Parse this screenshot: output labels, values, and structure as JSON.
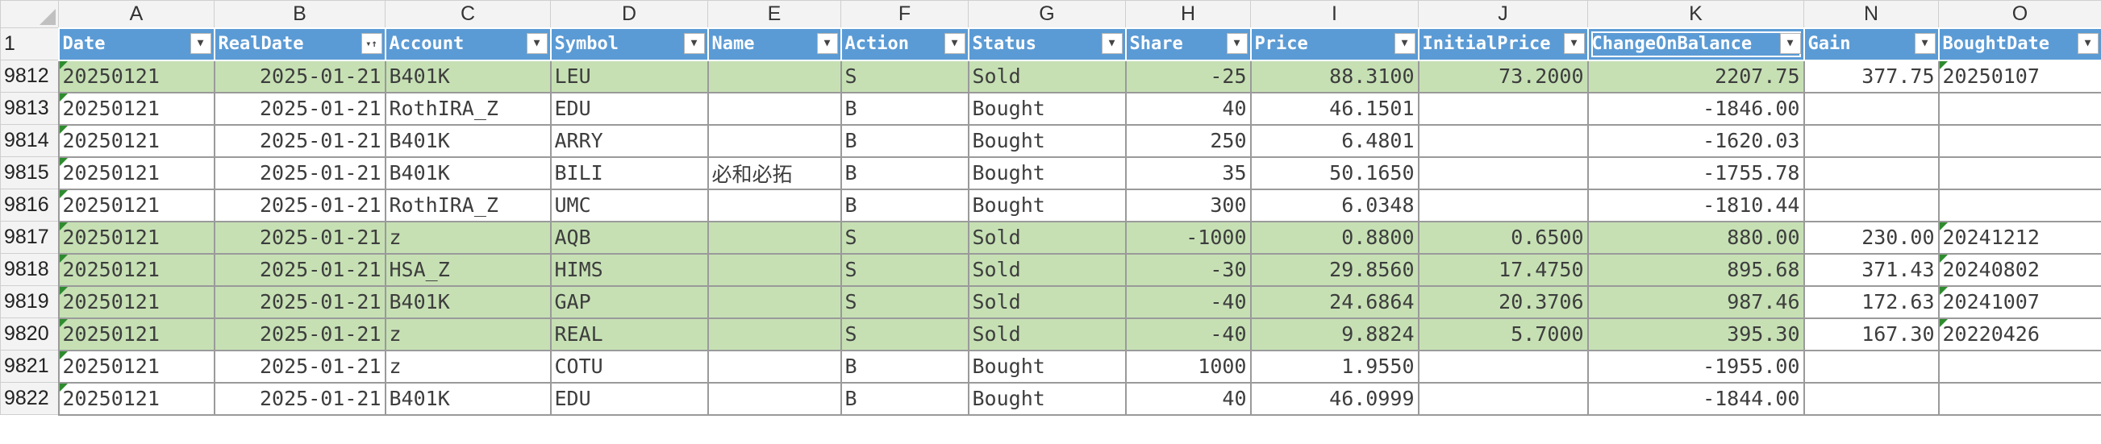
{
  "sheet": {
    "columns": [
      "A",
      "B",
      "C",
      "D",
      "E",
      "F",
      "G",
      "H",
      "I",
      "J",
      "K",
      "N",
      "O"
    ],
    "header_row_number": "1",
    "headers": [
      "Date",
      "RealDate",
      "Account",
      "Symbol",
      "Name",
      "Action",
      "Status",
      "Share",
      "Price",
      "InitialPrice",
      "ChangeOnBalance",
      "Gain",
      "BoughtDate"
    ],
    "rows": [
      {
        "n": "9812",
        "sold": true,
        "Date": "20250121",
        "RealDate": "2025-01-21",
        "Account": "B401K",
        "Symbol": "LEU",
        "Name": "",
        "Action": "S",
        "Status": "Sold",
        "Share": "-25",
        "Price": "88.3100",
        "InitialPrice": "73.2000",
        "ChangeOnBalance": "2207.75",
        "Gain": "377.75",
        "BoughtDate": "20250107"
      },
      {
        "n": "9813",
        "sold": false,
        "Date": "20250121",
        "RealDate": "2025-01-21",
        "Account": "RothIRA_Z",
        "Symbol": "EDU",
        "Name": "",
        "Action": "B",
        "Status": "Bought",
        "Share": "40",
        "Price": "46.1501",
        "InitialPrice": "",
        "ChangeOnBalance": "-1846.00",
        "Gain": "",
        "BoughtDate": ""
      },
      {
        "n": "9814",
        "sold": false,
        "Date": "20250121",
        "RealDate": "2025-01-21",
        "Account": "B401K",
        "Symbol": "ARRY",
        "Name": "",
        "Action": "B",
        "Status": "Bought",
        "Share": "250",
        "Price": "6.4801",
        "InitialPrice": "",
        "ChangeOnBalance": "-1620.03",
        "Gain": "",
        "BoughtDate": ""
      },
      {
        "n": "9815",
        "sold": false,
        "Date": "20250121",
        "RealDate": "2025-01-21",
        "Account": "B401K",
        "Symbol": "BILI",
        "Name": "必和必拓",
        "Action": "B",
        "Status": "Bought",
        "Share": "35",
        "Price": "50.1650",
        "InitialPrice": "",
        "ChangeOnBalance": "-1755.78",
        "Gain": "",
        "BoughtDate": ""
      },
      {
        "n": "9816",
        "sold": false,
        "Date": "20250121",
        "RealDate": "2025-01-21",
        "Account": "RothIRA_Z",
        "Symbol": "UMC",
        "Name": "",
        "Action": "B",
        "Status": "Bought",
        "Share": "300",
        "Price": "6.0348",
        "InitialPrice": "",
        "ChangeOnBalance": "-1810.44",
        "Gain": "",
        "BoughtDate": ""
      },
      {
        "n": "9817",
        "sold": true,
        "Date": "20250121",
        "RealDate": "2025-01-21",
        "Account": "z",
        "Symbol": "AQB",
        "Name": "",
        "Action": "S",
        "Status": "Sold",
        "Share": "-1000",
        "Price": "0.8800",
        "InitialPrice": "0.6500",
        "ChangeOnBalance": "880.00",
        "Gain": "230.00",
        "BoughtDate": "20241212"
      },
      {
        "n": "9818",
        "sold": true,
        "Date": "20250121",
        "RealDate": "2025-01-21",
        "Account": "HSA_Z",
        "Symbol": "HIMS",
        "Name": "",
        "Action": "S",
        "Status": "Sold",
        "Share": "-30",
        "Price": "29.8560",
        "InitialPrice": "17.4750",
        "ChangeOnBalance": "895.68",
        "Gain": "371.43",
        "BoughtDate": "20240802"
      },
      {
        "n": "9819",
        "sold": true,
        "Date": "20250121",
        "RealDate": "2025-01-21",
        "Account": "B401K",
        "Symbol": "GAP",
        "Name": "",
        "Action": "S",
        "Status": "Sold",
        "Share": "-40",
        "Price": "24.6864",
        "InitialPrice": "20.3706",
        "ChangeOnBalance": "987.46",
        "Gain": "172.63",
        "BoughtDate": "20241007"
      },
      {
        "n": "9820",
        "sold": true,
        "Date": "20250121",
        "RealDate": "2025-01-21",
        "Account": "z",
        "Symbol": "REAL",
        "Name": "",
        "Action": "S",
        "Status": "Sold",
        "Share": "-40",
        "Price": "9.8824",
        "InitialPrice": "5.7000",
        "ChangeOnBalance": "395.30",
        "Gain": "167.30",
        "BoughtDate": "20220426"
      },
      {
        "n": "9821",
        "sold": false,
        "Date": "20250121",
        "RealDate": "2025-01-21",
        "Account": "z",
        "Symbol": "COTU",
        "Name": "",
        "Action": "B",
        "Status": "Bought",
        "Share": "1000",
        "Price": "1.9550",
        "InitialPrice": "",
        "ChangeOnBalance": "-1955.00",
        "Gain": "",
        "BoughtDate": ""
      },
      {
        "n": "9822",
        "sold": false,
        "Date": "20250121",
        "RealDate": "2025-01-21",
        "Account": "B401K",
        "Symbol": "EDU",
        "Name": "",
        "Action": "B",
        "Status": "Bought",
        "Share": "40",
        "Price": "46.0999",
        "InitialPrice": "",
        "ChangeOnBalance": "-1844.00",
        "Gain": "",
        "BoughtDate": ""
      }
    ]
  },
  "icons": {
    "filter": "filter-dropdown-icon",
    "sort": "sort-ascending-icon"
  },
  "colors": {
    "header_bg": "#5b9bd5",
    "sold_row_bg": "#c6e0b4",
    "grid_line": "#9a9a9a",
    "error_flag": "#2e8b2e"
  }
}
